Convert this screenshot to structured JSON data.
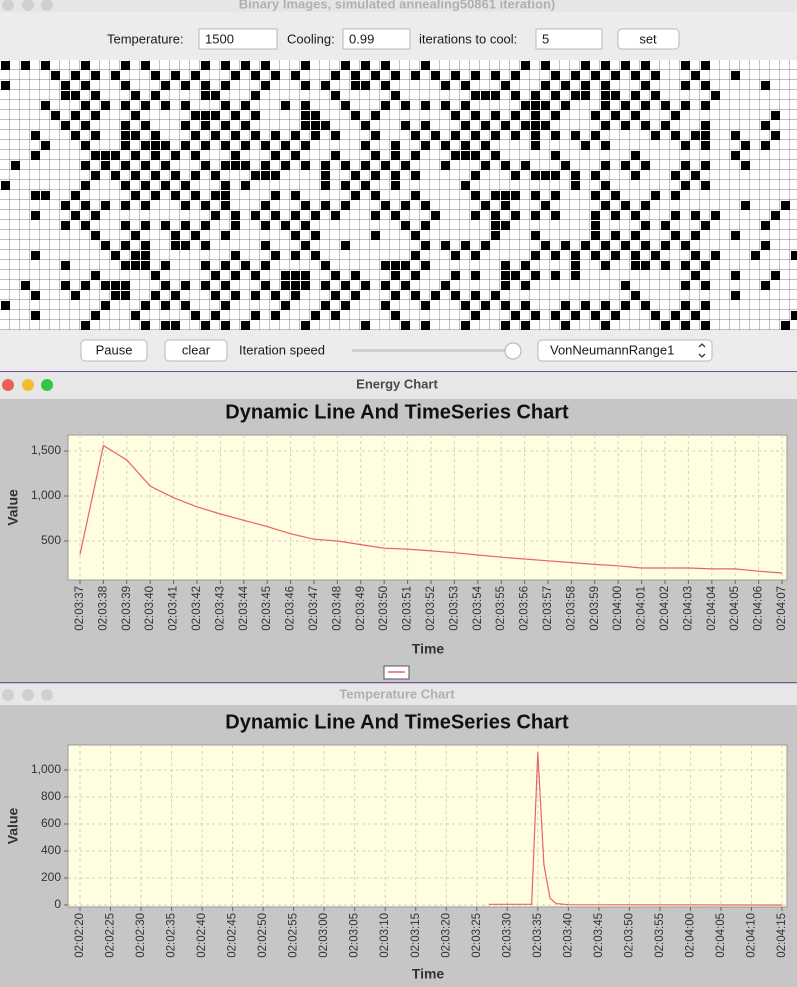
{
  "window": {
    "title": "Binary Images, simulated annealing50861 iteration)"
  },
  "controls": {
    "temperature_label": "Temperature:",
    "temperature": "1500",
    "cooling_label": "Cooling:",
    "cooling": "0.99",
    "iterations_label": "iterations to cool:",
    "iterations": "5",
    "set": "set"
  },
  "bottom_controls": {
    "pause": "Pause",
    "clear": "clear",
    "speed_label": "Iteration speed",
    "neighborhood": "VonNeumannRange1"
  },
  "chart_windows": [
    "Energy Chart",
    "Temperature Chart"
  ],
  "chart_data": [
    {
      "type": "line",
      "title": "Dynamic Line And TimeSeries Chart",
      "xlabel": "Time",
      "ylabel": "Value",
      "grid": true,
      "legend": true,
      "xlim": [
        "02:03:37",
        "02:04:07"
      ],
      "xticks": [
        "02:03:37",
        "02:03:38",
        "02:03:39",
        "02:03:40",
        "02:03:41",
        "02:03:42",
        "02:03:43",
        "02:03:44",
        "02:03:45",
        "02:03:46",
        "02:03:47",
        "02:03:48",
        "02:03:49",
        "02:03:50",
        "02:03:51",
        "02:03:52",
        "02:03:53",
        "02:03:54",
        "02:03:55",
        "02:03:56",
        "02:03:57",
        "02:03:58",
        "02:03:59",
        "02:04:00",
        "02:04:01",
        "02:04:02",
        "02:04:03",
        "02:04:04",
        "02:04:05",
        "02:04:06",
        "02:04:07"
      ],
      "ylim": [
        67,
        1678
      ],
      "yticks": [
        500,
        {
          "value": 1000,
          "label": "1,000"
        },
        {
          "value": 1500,
          "label": "1,500"
        }
      ],
      "series": [
        {
          "color": "#e86464",
          "x": [
            "02:03:37",
            "02:03:38",
            "02:03:39",
            "02:03:40",
            "02:03:41",
            "02:03:42",
            "02:03:43",
            "02:03:44",
            "02:03:45",
            "02:03:46",
            "02:03:47",
            "02:03:48",
            "02:03:49",
            "02:03:50",
            "02:03:51",
            "02:03:52",
            "02:03:53",
            "02:03:54",
            "02:03:55",
            "02:03:56",
            "02:03:57",
            "02:03:58",
            "02:03:59",
            "02:04:00",
            "02:04:01",
            "02:04:02",
            "02:04:03",
            "02:04:04",
            "02:04:05",
            "02:04:06",
            "02:04:07"
          ],
          "values": [
            350,
            1560,
            1400,
            1110,
            980,
            880,
            800,
            730,
            660,
            580,
            520,
            500,
            460,
            420,
            410,
            390,
            370,
            345,
            320,
            300,
            280,
            260,
            240,
            225,
            200,
            200,
            200,
            190,
            190,
            165,
            145
          ]
        }
      ]
    },
    {
      "type": "line",
      "title": "Dynamic Line And TimeSeries Chart",
      "xlabel": "Time",
      "ylabel": "Value",
      "grid": true,
      "legend": false,
      "xlim": [
        "02:02:20",
        "02:04:15"
      ],
      "xticks": [
        "02:02:20",
        "02:02:25",
        "02:02:30",
        "02:02:35",
        "02:02:40",
        "02:02:45",
        "02:02:50",
        "02:02:55",
        "02:03:00",
        "02:03:05",
        "02:03:10",
        "02:03:15",
        "02:03:20",
        "02:03:25",
        "02:03:30",
        "02:03:35",
        "02:03:40",
        "02:03:45",
        "02:03:50",
        "02:03:55",
        "02:04:00",
        "02:04:05",
        "02:04:10",
        "02:04:15"
      ],
      "ylim": [
        -15,
        1185
      ],
      "yticks": [
        0,
        200,
        400,
        600,
        800,
        {
          "value": 1000,
          "label": "1,000"
        }
      ],
      "series": [
        {
          "color": "#e86464",
          "x": [
            "02:03:27",
            "02:03:34",
            "02:03:35",
            "02:03:36",
            "02:03:37",
            "02:03:38",
            "02:03:40",
            "02:04:15"
          ],
          "values": [
            5,
            5,
            1130,
            300,
            50,
            10,
            2,
            0
          ]
        }
      ]
    }
  ]
}
